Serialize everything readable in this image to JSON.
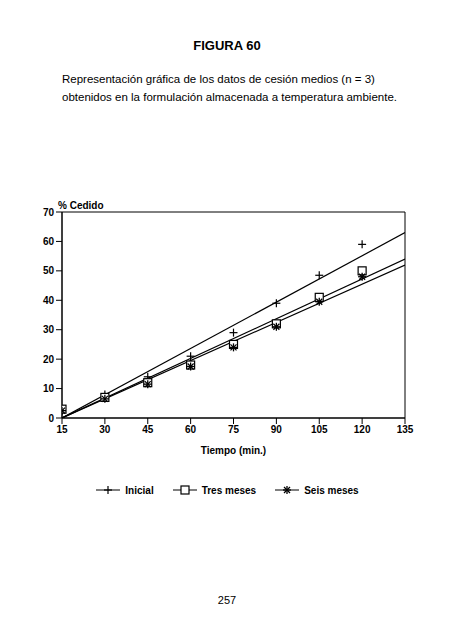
{
  "figure_label": "FIGURA 60",
  "caption": "Representación gráfica de los datos de cesión medios (n = 3) obtenidos en la formulación almacenada a temperatura ambiente.",
  "page_number": "257",
  "chart_data": {
    "type": "scatter",
    "x_label": "Tiempo (min.)",
    "y_label": "% Cedido",
    "xlim": [
      15,
      135
    ],
    "xticks": [
      15,
      30,
      45,
      60,
      75,
      90,
      105,
      120,
      135
    ],
    "ylim": [
      0,
      70
    ],
    "yticks": [
      0,
      10,
      20,
      30,
      40,
      50,
      60,
      70
    ],
    "grid": false,
    "series": [
      {
        "name": "Inicial",
        "color": "#000000",
        "marker": "plus",
        "x": [
          15,
          30,
          45,
          60,
          75,
          90,
          105,
          120
        ],
        "values": [
          3,
          8,
          14,
          21,
          29,
          39,
          48.5,
          59
        ],
        "fit": {
          "x": [
            15,
            135
          ],
          "values": [
            0,
            63
          ]
        }
      },
      {
        "name": "Tres meses",
        "color": "#000000",
        "marker": "square",
        "x": [
          15,
          30,
          45,
          60,
          75,
          90,
          105,
          120
        ],
        "values": [
          3,
          7,
          12,
          18,
          25,
          32,
          41,
          50
        ],
        "fit": {
          "x": [
            15,
            135
          ],
          "values": [
            0,
            54
          ]
        }
      },
      {
        "name": "Seis meses",
        "color": "#000000",
        "marker": "star",
        "x": [
          15,
          30,
          45,
          60,
          75,
          90,
          105,
          120
        ],
        "values": [
          2.5,
          6.5,
          11.5,
          17.5,
          24,
          31,
          39.5,
          48
        ],
        "fit": {
          "x": [
            15,
            135
          ],
          "values": [
            0,
            52
          ]
        }
      }
    ]
  }
}
